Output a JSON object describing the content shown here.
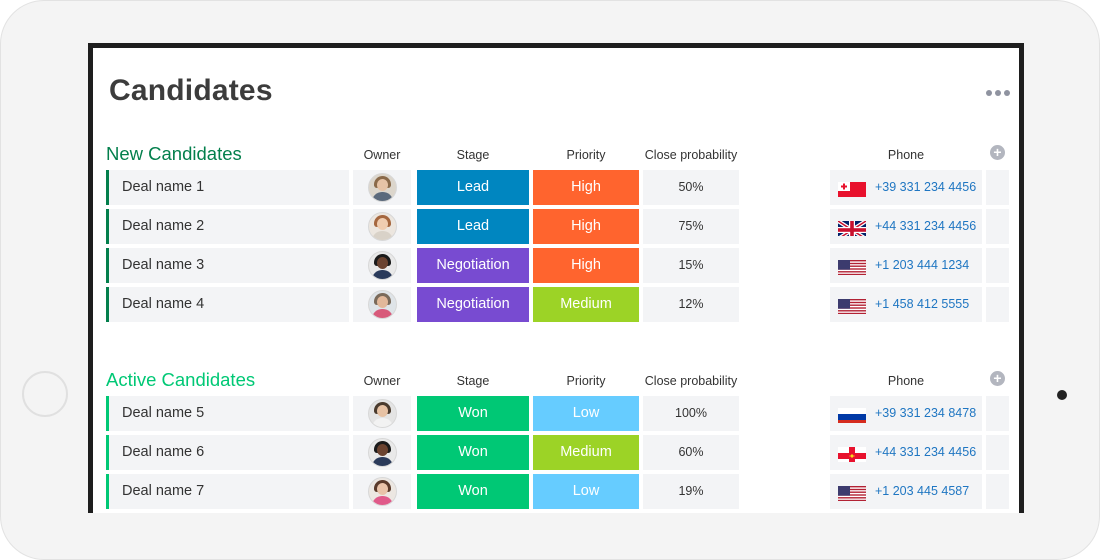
{
  "board": {
    "title": "Candidates"
  },
  "columns": {
    "owner": "Owner",
    "stage": "Stage",
    "priority": "Priority",
    "probability": "Close probability",
    "phone": "Phone"
  },
  "icons": {
    "more": "more-horizontal-icon",
    "add_column": "plus-circle-icon"
  },
  "colors": {
    "new_group": "#037f4c",
    "active_group": "#00c875",
    "lead": "#0086c0",
    "negotiation": "#784bd1",
    "won": "#00c875",
    "high": "#ff642e",
    "medium": "#9cd326",
    "low": "#66ccff",
    "phone_link": "#1f76c2"
  },
  "groups": [
    {
      "title": "New Candidates",
      "rows": [
        {
          "name": "Deal name 1",
          "stage": "Lead",
          "priority": "High",
          "probability": "50%",
          "phone": "+39 331 234 4456",
          "flag": "tonga-flag-icon"
        },
        {
          "name": "Deal name 2",
          "stage": "Lead",
          "priority": "High",
          "probability": "75%",
          "phone": "+44 331 234 4456",
          "flag": "uk-flag-icon"
        },
        {
          "name": "Deal name 3",
          "stage": "Negotiation",
          "priority": "High",
          "probability": "15%",
          "phone": "+1 203 444 1234",
          "flag": "us-flag-icon"
        },
        {
          "name": "Deal name 4",
          "stage": "Negotiation",
          "priority": "Medium",
          "probability": "12%",
          "phone": "+1 458 412 5555",
          "flag": "us-flag-icon"
        }
      ]
    },
    {
      "title": "Active Candidates",
      "rows": [
        {
          "name": "Deal name 5",
          "stage": "Won",
          "priority": "Low",
          "probability": "100%",
          "phone": "+39 331 234 8478",
          "flag": "russia-flag-icon"
        },
        {
          "name": "Deal name 6",
          "stage": "Won",
          "priority": "Medium",
          "probability": "60%",
          "phone": "+44 331 234 4456",
          "flag": "guernsey-flag-icon"
        },
        {
          "name": "Deal name 7",
          "stage": "Won",
          "priority": "Low",
          "probability": "19%",
          "phone": "+1 203 445 4587",
          "flag": "us-flag-icon"
        }
      ]
    }
  ]
}
